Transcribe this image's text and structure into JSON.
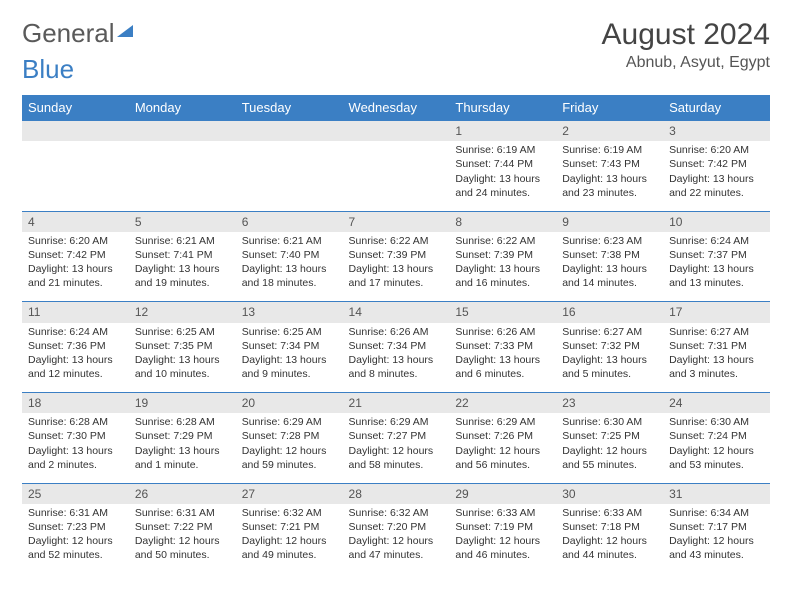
{
  "brand": {
    "part1": "General",
    "part2": "Blue"
  },
  "title": "August 2024",
  "location": "Abnub, Asyut, Egypt",
  "colors": {
    "header_bg": "#3b7fc4",
    "header_text": "#ffffff",
    "daynum_bg": "#e8e8e8",
    "row_divider": "#3b7fc4",
    "body_text": "#333333",
    "title_text": "#444444",
    "page_bg": "#ffffff"
  },
  "typography": {
    "title_fontsize": 30,
    "location_fontsize": 16,
    "weekday_fontsize": 13,
    "daynum_fontsize": 12,
    "cell_fontsize": 10.5
  },
  "weekdays": [
    "Sunday",
    "Monday",
    "Tuesday",
    "Wednesday",
    "Thursday",
    "Friday",
    "Saturday"
  ],
  "weeks": [
    {
      "nums": [
        "",
        "",
        "",
        "",
        "1",
        "2",
        "3"
      ],
      "cells": [
        "",
        "",
        "",
        "",
        "Sunrise: 6:19 AM\nSunset: 7:44 PM\nDaylight: 13 hours and 24 minutes.",
        "Sunrise: 6:19 AM\nSunset: 7:43 PM\nDaylight: 13 hours and 23 minutes.",
        "Sunrise: 6:20 AM\nSunset: 7:42 PM\nDaylight: 13 hours and 22 minutes."
      ]
    },
    {
      "nums": [
        "4",
        "5",
        "6",
        "7",
        "8",
        "9",
        "10"
      ],
      "cells": [
        "Sunrise: 6:20 AM\nSunset: 7:42 PM\nDaylight: 13 hours and 21 minutes.",
        "Sunrise: 6:21 AM\nSunset: 7:41 PM\nDaylight: 13 hours and 19 minutes.",
        "Sunrise: 6:21 AM\nSunset: 7:40 PM\nDaylight: 13 hours and 18 minutes.",
        "Sunrise: 6:22 AM\nSunset: 7:39 PM\nDaylight: 13 hours and 17 minutes.",
        "Sunrise: 6:22 AM\nSunset: 7:39 PM\nDaylight: 13 hours and 16 minutes.",
        "Sunrise: 6:23 AM\nSunset: 7:38 PM\nDaylight: 13 hours and 14 minutes.",
        "Sunrise: 6:24 AM\nSunset: 7:37 PM\nDaylight: 13 hours and 13 minutes."
      ]
    },
    {
      "nums": [
        "11",
        "12",
        "13",
        "14",
        "15",
        "16",
        "17"
      ],
      "cells": [
        "Sunrise: 6:24 AM\nSunset: 7:36 PM\nDaylight: 13 hours and 12 minutes.",
        "Sunrise: 6:25 AM\nSunset: 7:35 PM\nDaylight: 13 hours and 10 minutes.",
        "Sunrise: 6:25 AM\nSunset: 7:34 PM\nDaylight: 13 hours and 9 minutes.",
        "Sunrise: 6:26 AM\nSunset: 7:34 PM\nDaylight: 13 hours and 8 minutes.",
        "Sunrise: 6:26 AM\nSunset: 7:33 PM\nDaylight: 13 hours and 6 minutes.",
        "Sunrise: 6:27 AM\nSunset: 7:32 PM\nDaylight: 13 hours and 5 minutes.",
        "Sunrise: 6:27 AM\nSunset: 7:31 PM\nDaylight: 13 hours and 3 minutes."
      ]
    },
    {
      "nums": [
        "18",
        "19",
        "20",
        "21",
        "22",
        "23",
        "24"
      ],
      "cells": [
        "Sunrise: 6:28 AM\nSunset: 7:30 PM\nDaylight: 13 hours and 2 minutes.",
        "Sunrise: 6:28 AM\nSunset: 7:29 PM\nDaylight: 13 hours and 1 minute.",
        "Sunrise: 6:29 AM\nSunset: 7:28 PM\nDaylight: 12 hours and 59 minutes.",
        "Sunrise: 6:29 AM\nSunset: 7:27 PM\nDaylight: 12 hours and 58 minutes.",
        "Sunrise: 6:29 AM\nSunset: 7:26 PM\nDaylight: 12 hours and 56 minutes.",
        "Sunrise: 6:30 AM\nSunset: 7:25 PM\nDaylight: 12 hours and 55 minutes.",
        "Sunrise: 6:30 AM\nSunset: 7:24 PM\nDaylight: 12 hours and 53 minutes."
      ]
    },
    {
      "nums": [
        "25",
        "26",
        "27",
        "28",
        "29",
        "30",
        "31"
      ],
      "cells": [
        "Sunrise: 6:31 AM\nSunset: 7:23 PM\nDaylight: 12 hours and 52 minutes.",
        "Sunrise: 6:31 AM\nSunset: 7:22 PM\nDaylight: 12 hours and 50 minutes.",
        "Sunrise: 6:32 AM\nSunset: 7:21 PM\nDaylight: 12 hours and 49 minutes.",
        "Sunrise: 6:32 AM\nSunset: 7:20 PM\nDaylight: 12 hours and 47 minutes.",
        "Sunrise: 6:33 AM\nSunset: 7:19 PM\nDaylight: 12 hours and 46 minutes.",
        "Sunrise: 6:33 AM\nSunset: 7:18 PM\nDaylight: 12 hours and 44 minutes.",
        "Sunrise: 6:34 AM\nSunset: 7:17 PM\nDaylight: 12 hours and 43 minutes."
      ]
    }
  ]
}
